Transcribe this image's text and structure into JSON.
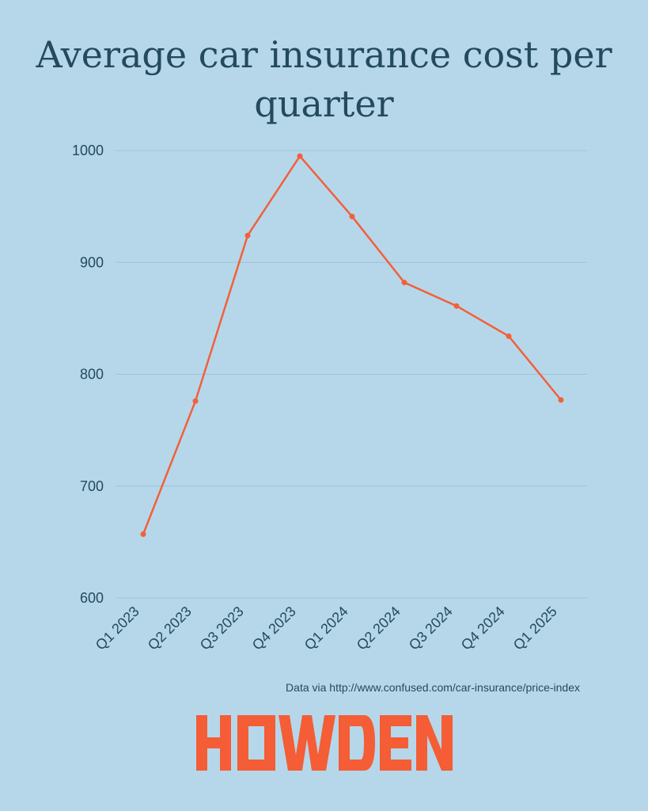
{
  "chart_data": {
    "type": "line",
    "title": "Average car insurance cost per quarter",
    "categories": [
      "Q1 2023",
      "Q2 2023",
      "Q3 2023",
      "Q4 2023",
      "Q1 2024",
      "Q2 2024",
      "Q3 2024",
      "Q4 2024",
      "Q1 2025"
    ],
    "series": [
      {
        "values": [
          657,
          776,
          924,
          995,
          941,
          882,
          861,
          834,
          777
        ]
      }
    ],
    "ylim": [
      600,
      1000
    ],
    "yticks": [
      600,
      700,
      800,
      900,
      1000
    ],
    "xlabel": "",
    "ylabel": "",
    "grid": true,
    "colors": {
      "line": "#f2603a",
      "grid": "#9cc3d8",
      "text": "#234a5e",
      "background": "#b6d7ea"
    }
  },
  "source_note": "Data via http://www.confused.com/car-insurance/price-index",
  "logo": {
    "text": "HOWDEN",
    "color": "#f45d35"
  }
}
